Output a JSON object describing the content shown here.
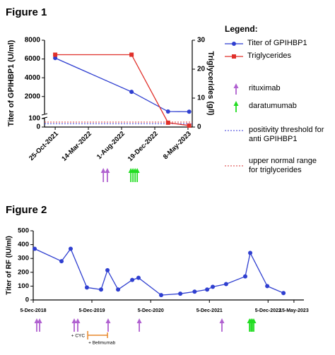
{
  "chart_data": [
    {
      "type": "line",
      "title": "Figure 1",
      "y_label": "Titer of GPIHBP1 (U/ml)",
      "y2_label": "Triglycerides (g/l)",
      "legend_title": "Legend:",
      "x": [
        "2021-10-25",
        "2022-09-12",
        "2023-02-13",
        "2023-05-13"
      ],
      "xlim": [
        "2021-09-10",
        "2023-05-26"
      ],
      "xticks": [
        {
          "value": "2021-10-25",
          "label": "25-Oct-2021"
        },
        {
          "value": "2022-03-14",
          "label": "14-Mar-2022"
        },
        {
          "value": "2022-08-01",
          "label": "1-Aug-2022"
        },
        {
          "value": "2022-12-19",
          "label": "19-Dec-2022"
        },
        {
          "value": "2023-05-08",
          "label": "8-May-2023"
        }
      ],
      "ylim_lower": [
        0,
        100
      ],
      "ylim_upper": [
        100,
        8000
      ],
      "yticks": [
        0,
        100,
        2000,
        4000,
        6000,
        8000
      ],
      "y2lim": [
        0,
        30
      ],
      "y2ticks": [
        0,
        10,
        20,
        30
      ],
      "series": [
        {
          "name": "Titer of GPIHBP1",
          "color": "#2f3fd0",
          "marker": "circle",
          "values": [
            6100,
            2500,
            400,
            380
          ]
        },
        {
          "name": "Triglycerides",
          "color": "#e0302a",
          "marker": "square",
          "axis": "y2",
          "values": [
            25,
            25,
            1.5,
            0.5
          ]
        }
      ],
      "reference_lines": [
        {
          "name": "positivity threshold for anti GPIHBP1",
          "value": 40,
          "color": "#3a3ad8"
        },
        {
          "name": "upper normal range for triglycerides",
          "value": 1.7,
          "axis": "y2",
          "color": "#d83a3a"
        }
      ],
      "events": [
        {
          "name": "rituximab",
          "color": "#b060d0",
          "x": [
            "2022-05-16",
            "2022-06-02"
          ]
        },
        {
          "name": "daratumumab",
          "color": "#22dd22",
          "x": [
            "2022-09-09",
            "2022-09-18",
            "2022-09-27",
            "2022-10-06"
          ]
        }
      ]
    },
    {
      "type": "line",
      "title": "Figure 2",
      "y_label": "Titer of RF (IU/ml)",
      "x": [
        "2018-12-14",
        "2019-05-30",
        "2019-07-26",
        "2019-11-04",
        "2020-01-31",
        "2020-03-11",
        "2020-05-16",
        "2020-08-12",
        "2020-09-20",
        "2021-02-08",
        "2021-06-07",
        "2021-09-04",
        "2021-11-21",
        "2021-12-26",
        "2022-03-19",
        "2022-07-16",
        "2022-08-16",
        "2022-11-30",
        "2023-03-11"
      ],
      "values": [
        370,
        280,
        370,
        90,
        75,
        215,
        75,
        145,
        160,
        35,
        45,
        60,
        75,
        95,
        115,
        170,
        340,
        100,
        50
      ],
      "color": "#2f3fd0",
      "xlim": [
        "2018-12-05",
        "2023-07-16"
      ],
      "xticks": [
        {
          "value": "2018-12-05",
          "label": "5-Dec-2018"
        },
        {
          "value": "2019-12-05",
          "label": "5-Dec-2019"
        },
        {
          "value": "2020-12-05",
          "label": "5-Dec-2020"
        },
        {
          "value": "2021-12-05",
          "label": "5-Dec-2021"
        },
        {
          "value": "2022-12-05",
          "label": "5-Dec-2022"
        },
        {
          "value": "2023-05-15",
          "label": "15-May-2023"
        }
      ],
      "ylim": [
        0,
        500
      ],
      "yticks": [
        0,
        100,
        200,
        300,
        400,
        500
      ],
      "events": [
        {
          "color": "#b060d0",
          "x": [
            "2018-12-27",
            "2019-01-14",
            "2019-08-17",
            "2019-09-08",
            "2020-03-15",
            "2020-09-25",
            "2022-02-21"
          ]
        },
        {
          "color": "#22dd22",
          "x": [
            "2022-08-12",
            "2022-08-21",
            "2022-08-29",
            "2022-09-07"
          ]
        }
      ],
      "treatment": {
        "cyc_label": "+ CYC",
        "belimumab_label": "+ Belimumab",
        "start": "2019-11-09",
        "end": "2020-03-11",
        "color": "#e8892b"
      }
    }
  ]
}
